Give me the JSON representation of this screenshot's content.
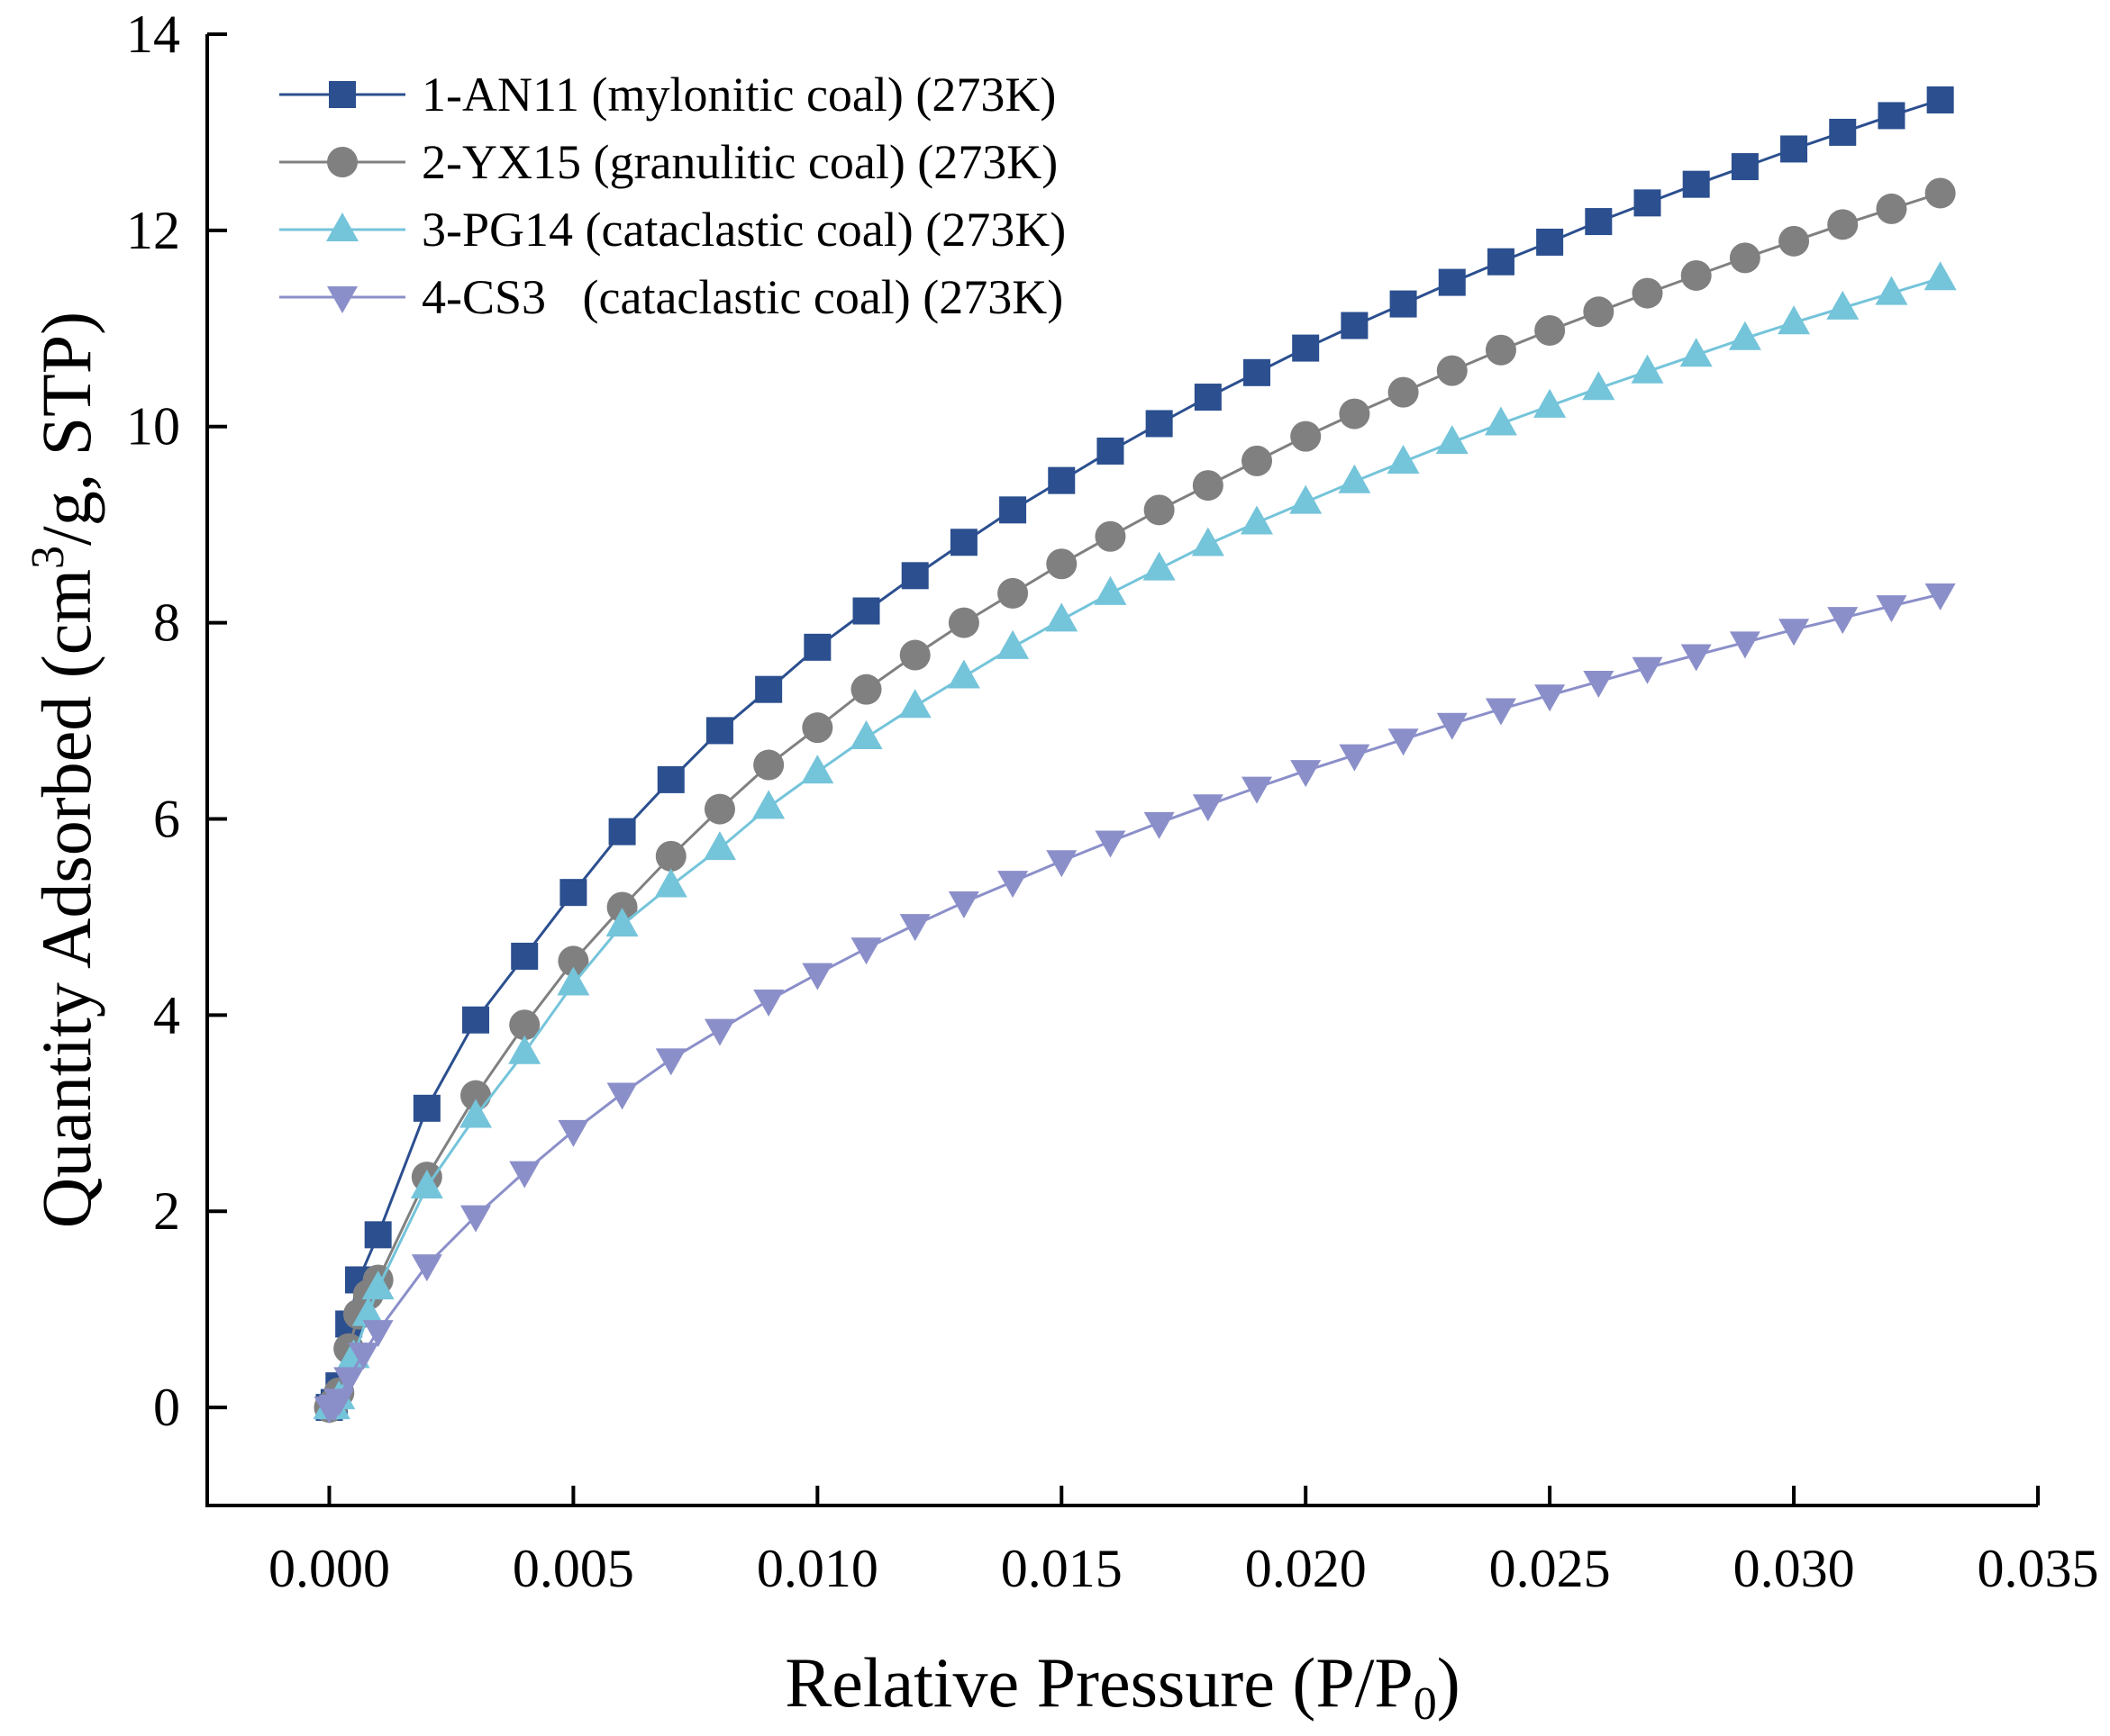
{
  "chart_data": {
    "type": "line",
    "xlabel": "Relative Pressure (P/P",
    "xlabel_sub": "0",
    "xlabel_end": ")",
    "ylabel_pre": "Quantity Adsorbed (cm",
    "ylabel_sup": "3",
    "ylabel_post": "/g, STP)",
    "xlim": [
      -0.0025,
      0.035
    ],
    "ylim": [
      -1,
      14
    ],
    "xticks": [
      0.0,
      0.005,
      0.01,
      0.015,
      0.02,
      0.025,
      0.03,
      0.035
    ],
    "xtick_labels": [
      "0.000",
      "0.005",
      "0.010",
      "0.015",
      "0.020",
      "0.025",
      "0.030",
      "0.035"
    ],
    "yticks": [
      0,
      2,
      4,
      6,
      8,
      10,
      12,
      14
    ],
    "ytick_labels": [
      "0",
      "2",
      "4",
      "6",
      "8",
      "10",
      "12",
      "14"
    ],
    "legend_position": "top-left",
    "series": [
      {
        "name": "1-AN11 (mylonitic coal) (273K)",
        "color": "#2b4f8f",
        "marker": "square",
        "x": [
          0.0,
          0.0001,
          0.0002,
          0.0004,
          0.0006,
          0.001,
          0.002,
          0.003,
          0.004,
          0.005,
          0.006,
          0.007,
          0.008,
          0.009,
          0.01,
          0.011,
          0.012,
          0.013,
          0.014,
          0.015,
          0.016,
          0.017,
          0.018,
          0.019,
          0.02,
          0.021,
          0.022,
          0.023,
          0.024,
          0.025,
          0.026,
          0.027,
          0.028,
          0.029,
          0.03,
          0.031,
          0.032,
          0.033
        ],
        "y": [
          0.0,
          0.05,
          0.22,
          0.85,
          1.3,
          1.76,
          3.05,
          3.95,
          4.6,
          5.25,
          5.87,
          6.4,
          6.9,
          7.32,
          7.75,
          8.12,
          8.48,
          8.82,
          9.15,
          9.45,
          9.75,
          10.03,
          10.3,
          10.55,
          10.8,
          11.03,
          11.25,
          11.47,
          11.68,
          11.88,
          12.09,
          12.28,
          12.47,
          12.65,
          12.83,
          13.0,
          13.17,
          13.33
        ]
      },
      {
        "name": "2-YX15 (granulitic coal) (273K)",
        "color": "#808080",
        "marker": "circle",
        "x": [
          0.0,
          0.0001,
          0.0002,
          0.0004,
          0.0006,
          0.0008,
          0.001,
          0.002,
          0.003,
          0.004,
          0.005,
          0.006,
          0.007,
          0.008,
          0.009,
          0.01,
          0.011,
          0.012,
          0.013,
          0.014,
          0.015,
          0.016,
          0.017,
          0.018,
          0.019,
          0.02,
          0.021,
          0.022,
          0.023,
          0.024,
          0.025,
          0.026,
          0.027,
          0.028,
          0.029,
          0.03,
          0.031,
          0.032,
          0.033
        ],
        "y": [
          0.0,
          0.05,
          0.15,
          0.6,
          0.95,
          1.15,
          1.3,
          2.35,
          3.18,
          3.9,
          4.55,
          5.1,
          5.62,
          6.1,
          6.55,
          6.93,
          7.32,
          7.67,
          8.0,
          8.3,
          8.6,
          8.88,
          9.15,
          9.4,
          9.65,
          9.9,
          10.13,
          10.35,
          10.57,
          10.78,
          10.98,
          11.17,
          11.36,
          11.54,
          11.72,
          11.89,
          12.06,
          12.22,
          12.38
        ]
      },
      {
        "name": "3-PG14 (cataclastic coal) (273K)",
        "color": "#74c4da",
        "marker": "triangle-up",
        "x": [
          0.0,
          0.0001,
          0.0002,
          0.0005,
          0.0008,
          0.001,
          0.002,
          0.003,
          0.004,
          0.005,
          0.006,
          0.007,
          0.008,
          0.009,
          0.01,
          0.011,
          0.012,
          0.013,
          0.014,
          0.015,
          0.016,
          0.017,
          0.018,
          0.019,
          0.02,
          0.021,
          0.022,
          0.023,
          0.024,
          0.025,
          0.026,
          0.027,
          0.028,
          0.029,
          0.03,
          0.031,
          0.032,
          0.033
        ],
        "y": [
          0.0,
          0.0,
          0.1,
          0.52,
          0.95,
          1.22,
          2.25,
          2.97,
          3.62,
          4.32,
          4.92,
          5.32,
          5.7,
          6.12,
          6.48,
          6.83,
          7.15,
          7.45,
          7.75,
          8.03,
          8.3,
          8.55,
          8.8,
          9.02,
          9.23,
          9.44,
          9.64,
          9.84,
          10.03,
          10.21,
          10.39,
          10.56,
          10.73,
          10.9,
          11.06,
          11.21,
          11.36,
          11.51
        ]
      },
      {
        "name": "4-CS3   (cataclastic coal) (273K)",
        "color": "#8b8fc9",
        "marker": "triangle-down",
        "x": [
          0.0,
          0.0001,
          0.0002,
          0.0004,
          0.0007,
          0.001,
          0.002,
          0.003,
          0.004,
          0.005,
          0.006,
          0.007,
          0.008,
          0.009,
          0.01,
          0.011,
          0.012,
          0.013,
          0.014,
          0.015,
          0.016,
          0.017,
          0.018,
          0.019,
          0.02,
          0.021,
          0.022,
          0.023,
          0.024,
          0.025,
          0.026,
          0.027,
          0.028,
          0.029,
          0.03,
          0.031,
          0.032,
          0.033
        ],
        "y": [
          0.0,
          0.02,
          0.08,
          0.3,
          0.55,
          0.78,
          1.45,
          1.95,
          2.4,
          2.82,
          3.2,
          3.55,
          3.85,
          4.15,
          4.42,
          4.68,
          4.92,
          5.15,
          5.36,
          5.57,
          5.77,
          5.96,
          6.14,
          6.32,
          6.49,
          6.65,
          6.81,
          6.97,
          7.12,
          7.26,
          7.4,
          7.54,
          7.67,
          7.8,
          7.93,
          8.05,
          8.17,
          8.29
        ]
      }
    ]
  }
}
